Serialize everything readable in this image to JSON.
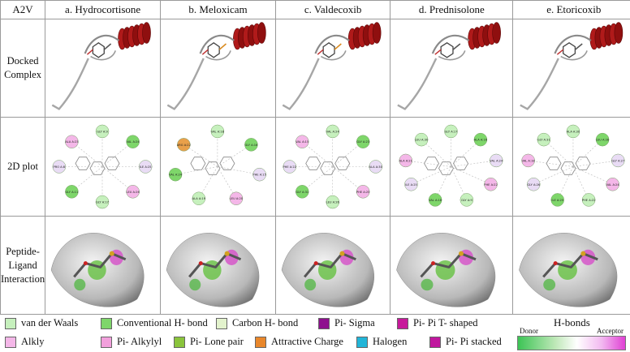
{
  "header": {
    "corner": "A2V",
    "columns": [
      "a. Hydrocortisone",
      "b. Meloxicam",
      "c. Valdecoxib",
      "d. Prednisolone",
      "e. Etoricoxib"
    ]
  },
  "rows": {
    "docked": "Docked Complex",
    "plot2d": "2D plot",
    "interaction": "Peptide-Ligand Interaction"
  },
  "plot_labels": {
    "a": [
      "GLY A:9",
      "VAL A:24",
      "ILE A:25",
      "LEU A:26",
      "GLY A:17",
      "GLY A:11",
      "PRO A:8",
      "ALA A:23"
    ],
    "b": [
      "VAL A:18",
      "GLY A:16",
      "PHE A:15",
      "LEU A:20",
      "ALA A:19",
      "VAL A:24",
      "ARG A:22"
    ],
    "c": [
      "VAL A:24",
      "GLY A:23",
      "ALA A:30",
      "PHE A:25",
      "LEU A:26",
      "GLY A:31",
      "PHE A:22",
      "VAL A:15"
    ],
    "d": [
      "GLY A:17",
      "ALA A:16",
      "VAL A:24",
      "PHE A:22",
      "GLY A:9",
      "VAL A:18",
      "ILE A:25",
      "ALA A:21",
      "LEU A:30"
    ],
    "e": [
      "ALA A:30",
      "LEU A:28",
      "GLY A:27",
      "VAL A:24",
      "PHE A:22",
      "ILE A:25",
      "GLY A:26",
      "VAL A:18",
      "GLY A:31"
    ]
  },
  "legend": {
    "items": [
      {
        "label": "van der Waals",
        "color": "#c6f0bd"
      },
      {
        "label": "Conventional H- bond",
        "color": "#7ed66a"
      },
      {
        "label": "Carbon H- bond",
        "color": "#e3f3cd"
      },
      {
        "label": "Pi- Sigma",
        "color": "#8e108e"
      },
      {
        "label": "Pi- Pi T- shaped",
        "color": "#c71a9b"
      },
      {
        "label": "Alkly",
        "color": "#f4b7e8"
      },
      {
        "label": "Pi- Alkylyl",
        "color": "#f2a0dc"
      },
      {
        "label": "Pi- Lone pair",
        "color": "#8ac43c"
      },
      {
        "label": "Attractive Charge",
        "color": "#e9872b"
      },
      {
        "label": "Halogen",
        "color": "#22b5d8"
      },
      {
        "label": "Pi- Pi stacked",
        "color": "#c0179e"
      }
    ],
    "hbonds_title": "H-bonds",
    "donor": "Donor",
    "acceptor": "Acceptor",
    "gradient_colors": [
      "#3cc455",
      "#ffffff",
      "#e040d4"
    ]
  }
}
